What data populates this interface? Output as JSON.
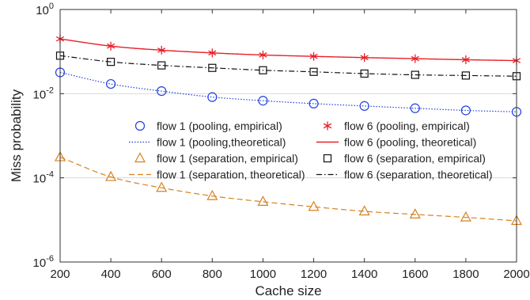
{
  "chart_data": {
    "type": "line",
    "xlabel": "Cache size",
    "ylabel": "Miss probability",
    "x": [
      200,
      400,
      600,
      800,
      1000,
      1200,
      1400,
      1600,
      1800,
      2000
    ],
    "xticks": [
      "200",
      "400",
      "600",
      "800",
      "1000",
      "1200",
      "1400",
      "1600",
      "1800",
      "2000"
    ],
    "xlim": [
      200,
      2000
    ],
    "ylim": [
      1e-06,
      1
    ],
    "yscale": "log",
    "ytick_labels": [
      {
        "base": "10",
        "exp": "-6"
      },
      {
        "base": "10",
        "exp": "-4"
      },
      {
        "base": "10",
        "exp": "-2"
      },
      {
        "base": "10",
        "exp": "0"
      }
    ],
    "grid": "horizontal",
    "legend_position": "center",
    "series": [
      {
        "name": "flow 1 (pooling, empirical)",
        "kind": "markers",
        "marker": "circle",
        "color": "#1f3fe0",
        "values": [
          0.032,
          0.017,
          0.0115,
          0.0083,
          0.0068,
          0.0058,
          0.0051,
          0.0045,
          0.004,
          0.0037
        ]
      },
      {
        "name": "flow 6 (pooling, empirical)",
        "kind": "markers",
        "marker": "asterisk",
        "color": "#e8202a",
        "values": [
          0.2,
          0.135,
          0.108,
          0.093,
          0.083,
          0.077,
          0.072,
          0.068,
          0.064,
          0.061
        ]
      },
      {
        "name": "flow 1 (pooling,theoretical)",
        "kind": "line",
        "dash": "dotted",
        "color": "#1f3fe0",
        "values": [
          0.032,
          0.017,
          0.0115,
          0.0083,
          0.0068,
          0.0058,
          0.0051,
          0.0045,
          0.004,
          0.0037
        ]
      },
      {
        "name": "flow 6 (pooling, theoretical)",
        "kind": "line",
        "dash": "solid",
        "color": "#e8202a",
        "values": [
          0.2,
          0.135,
          0.108,
          0.093,
          0.083,
          0.077,
          0.072,
          0.068,
          0.064,
          0.061
        ]
      },
      {
        "name": "flow 1 (separation, empirical)",
        "kind": "markers",
        "marker": "triangle",
        "color": "#d9801e",
        "values": [
          0.00031,
          0.000105,
          5.8e-05,
          3.7e-05,
          2.7e-05,
          2.05e-05,
          1.6e-05,
          1.35e-05,
          1.15e-05,
          9.5e-06
        ]
      },
      {
        "name": "flow 6 (separation, empirical)",
        "kind": "markers",
        "marker": "square",
        "color": "#111111",
        "values": [
          0.08,
          0.057,
          0.047,
          0.041,
          0.036,
          0.033,
          0.03,
          0.028,
          0.027,
          0.026
        ]
      },
      {
        "name": "flow 1 (separation, theoretical)",
        "kind": "line",
        "dash": "dashed",
        "color": "#d9801e",
        "values": [
          0.00031,
          0.000105,
          5.8e-05,
          3.7e-05,
          2.7e-05,
          2.05e-05,
          1.6e-05,
          1.35e-05,
          1.15e-05,
          9.5e-06
        ]
      },
      {
        "name": "flow 6 (separation, theoretical)",
        "kind": "line",
        "dash": "dashdot",
        "color": "#111111",
        "values": [
          0.08,
          0.057,
          0.047,
          0.041,
          0.036,
          0.033,
          0.03,
          0.028,
          0.027,
          0.026
        ]
      }
    ]
  }
}
